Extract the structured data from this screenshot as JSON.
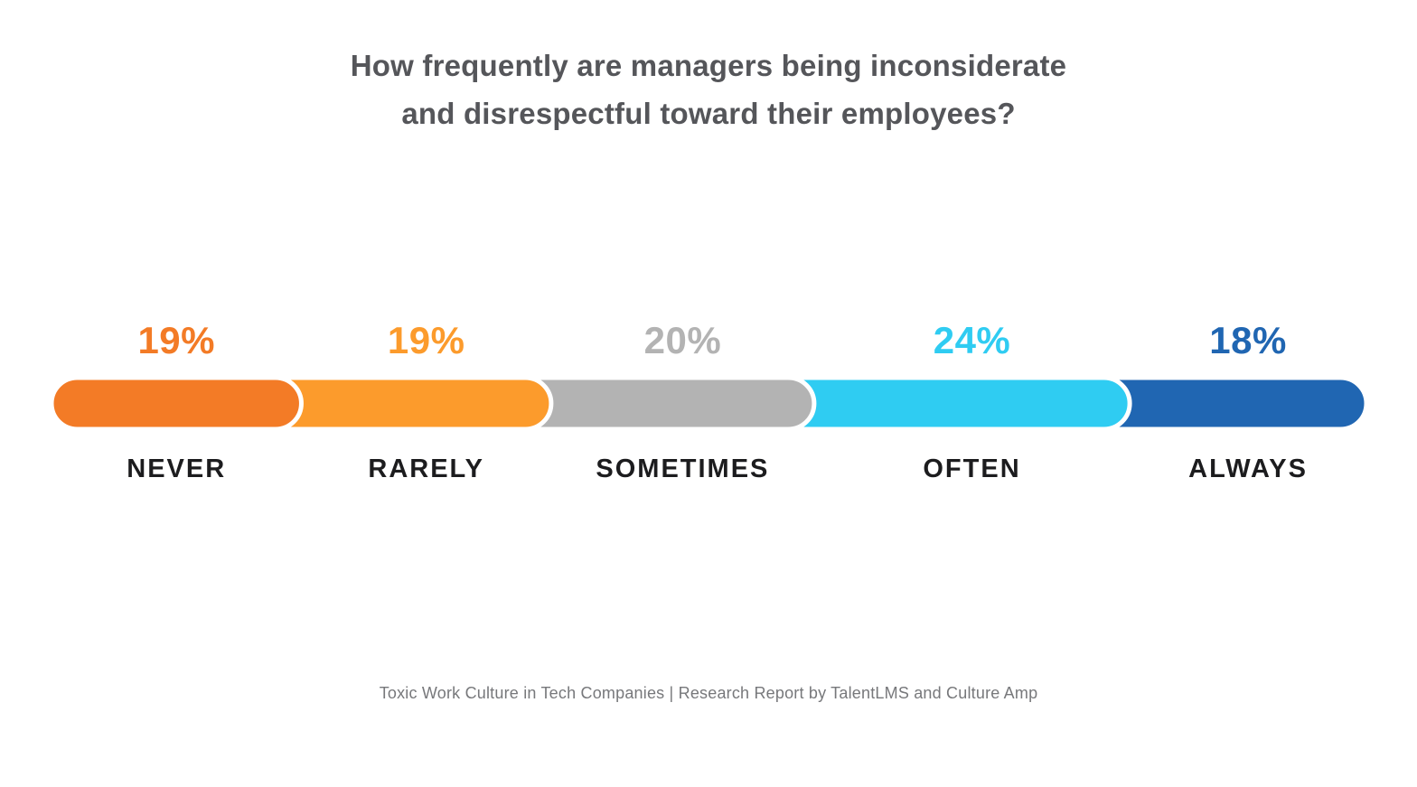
{
  "title": "How frequently are managers being inconsiderate\nand disrespectful toward their employees?",
  "footer": "Toxic Work Culture in Tech Companies | Research Report by TalentLMS and Culture Amp",
  "colors": {
    "title_text": "#55565a",
    "category_text": "#1c1c1e",
    "footer_text": "#77787b",
    "segment_divider": "#ffffff"
  },
  "chart_data": {
    "type": "bar",
    "variant": "segmented-horizontal-100-percent",
    "title": "How frequently are managers being inconsiderate and disrespectful toward their employees?",
    "unit": "%",
    "total": 100,
    "legend_position": "none",
    "grid": false,
    "categories": [
      "NEVER",
      "RARELY",
      "SOMETIMES",
      "OFTEN",
      "ALWAYS"
    ],
    "values": [
      19,
      19,
      20,
      24,
      18
    ],
    "segments": [
      {
        "label": "NEVER",
        "value": 19,
        "display": "19%",
        "color": "#f37b26"
      },
      {
        "label": "RARELY",
        "value": 19,
        "display": "19%",
        "color": "#fc9b2c"
      },
      {
        "label": "SOMETIMES",
        "value": 20,
        "display": "20%",
        "color": "#b3b3b3"
      },
      {
        "label": "OFTEN",
        "value": 24,
        "display": "24%",
        "color": "#2fccf2"
      },
      {
        "label": "ALWAYS",
        "value": 18,
        "display": "18%",
        "color": "#2066b2"
      }
    ]
  }
}
